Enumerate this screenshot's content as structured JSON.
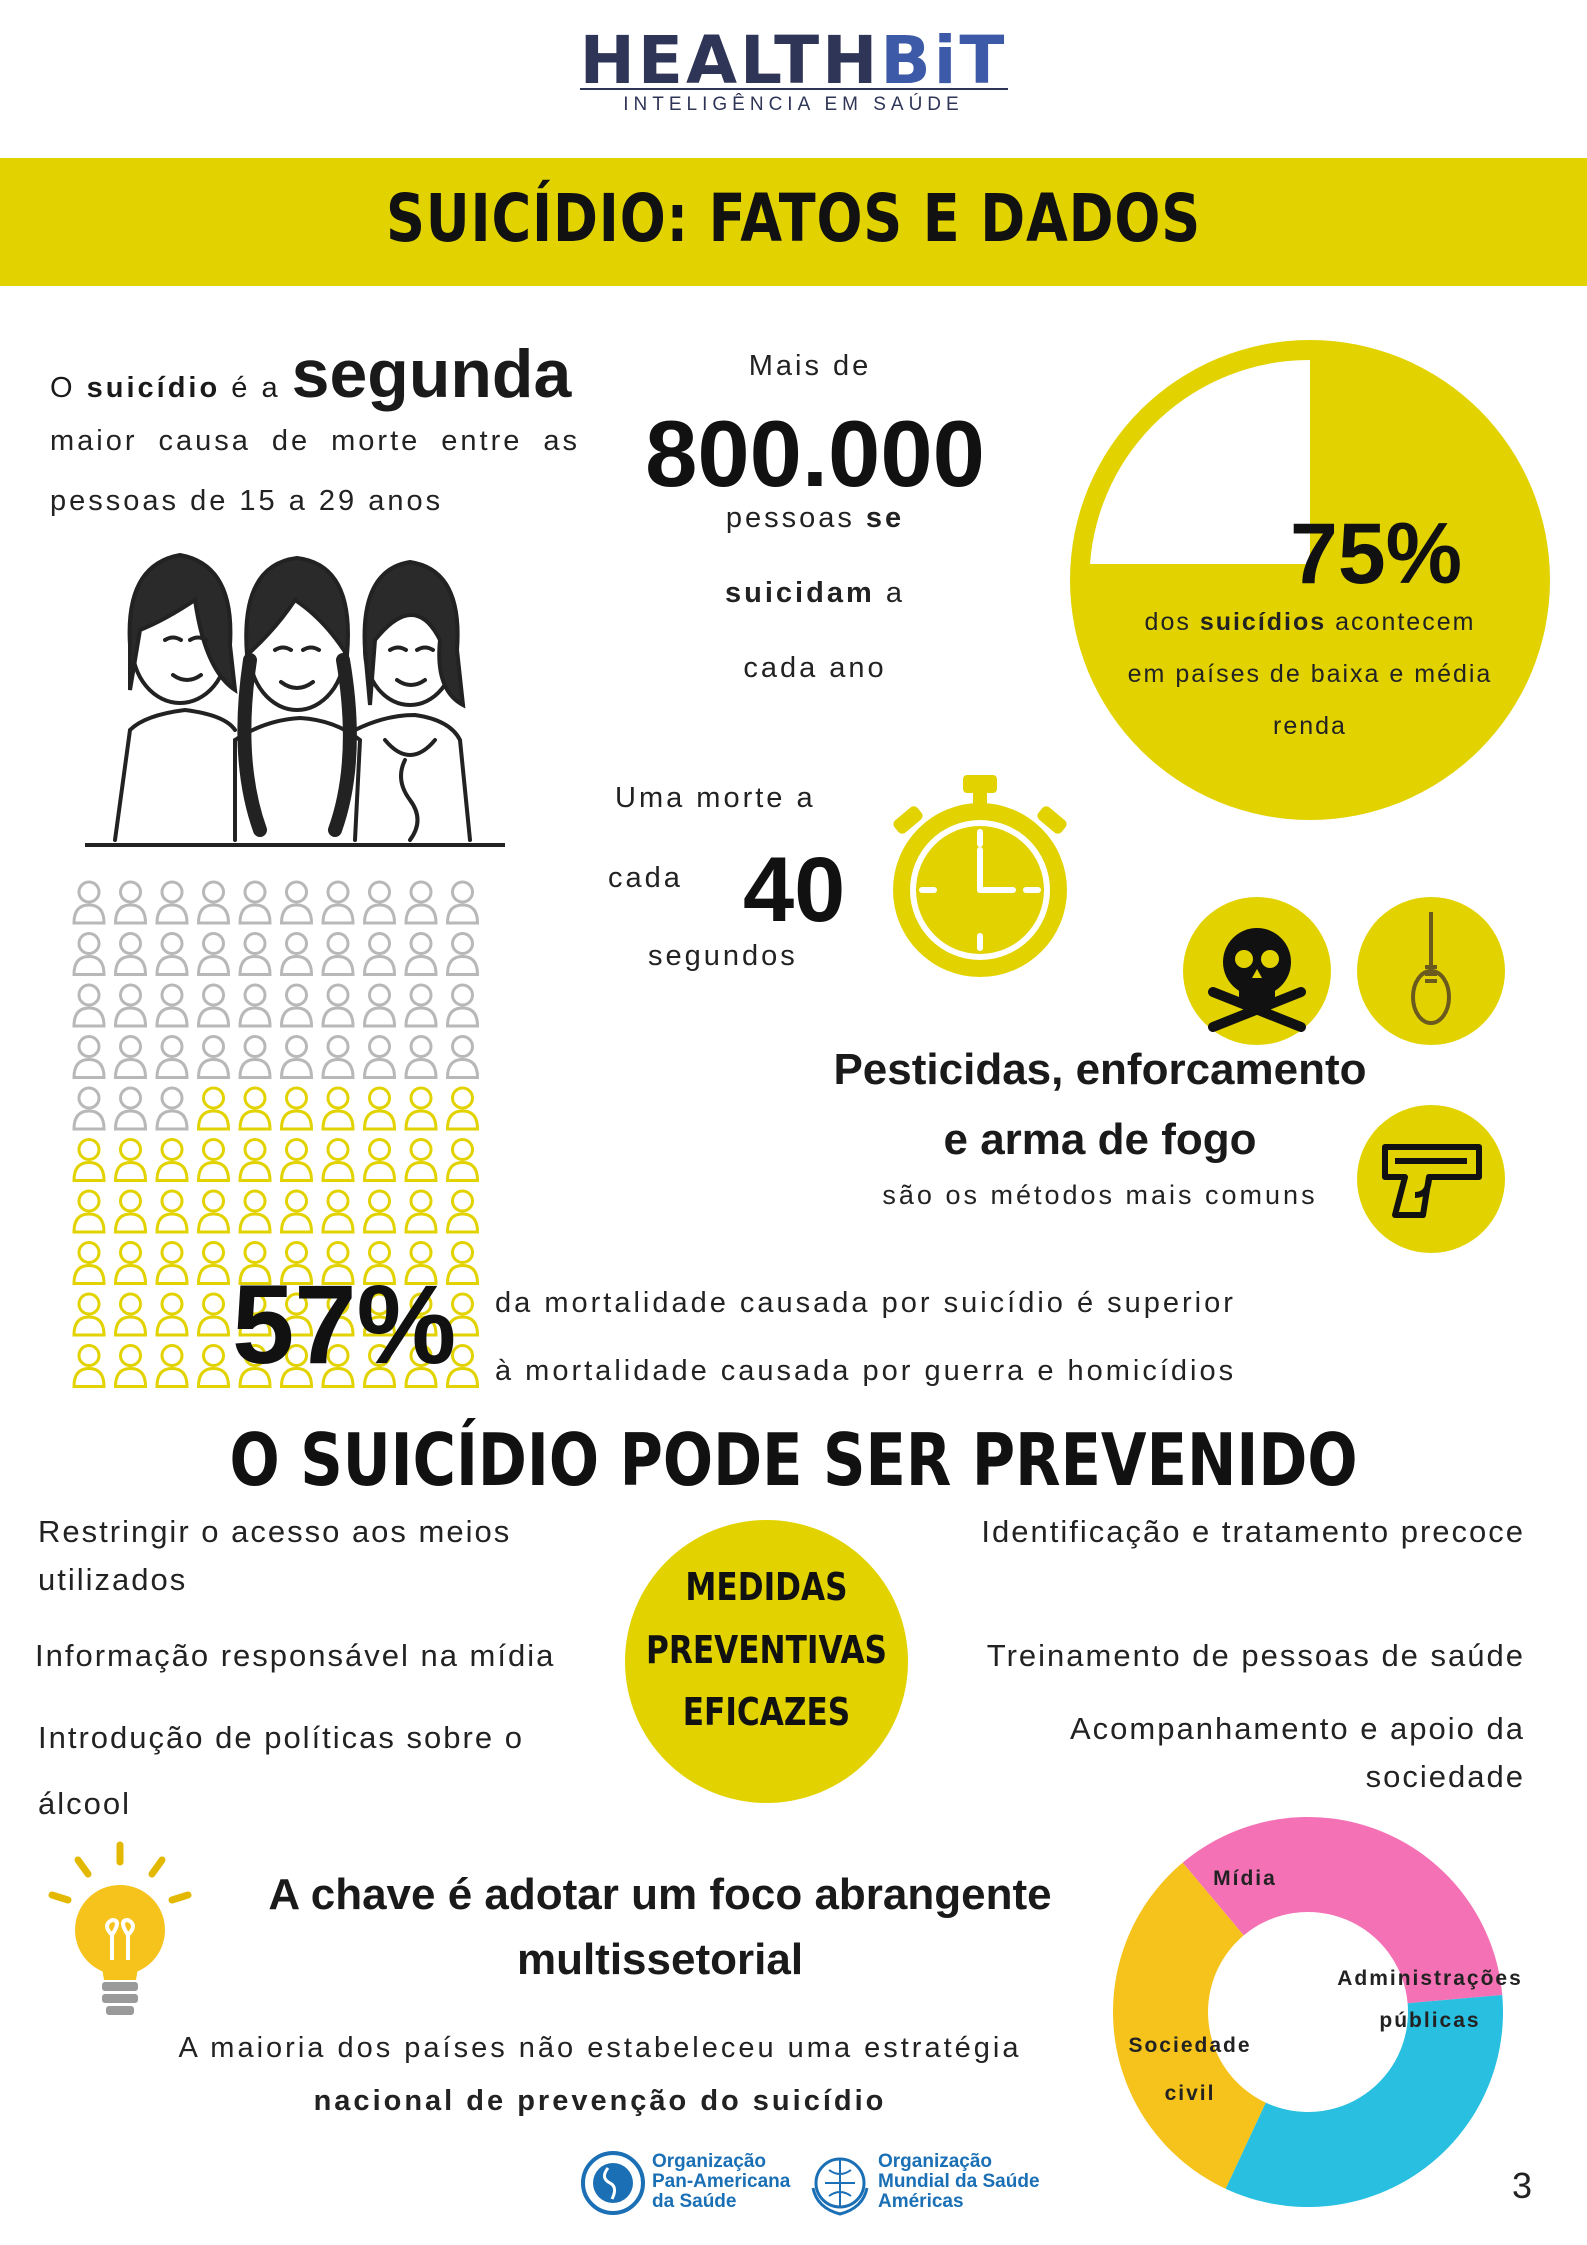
{
  "header": {
    "logo_part1": "HEALTH",
    "logo_part2": "BiT",
    "logo_tagline": "INTELIGÊNCIA EM SAÚDE"
  },
  "banner": {
    "title": "SUICÍDIO: FATOS E DADOS"
  },
  "fact_second_cause": {
    "prefix": "O",
    "bold": "suicídio",
    "mid": "é a",
    "highlight": "segunda",
    "line2": "maior causa de morte entre as",
    "line3": "pessoas de 15 a 29 anos"
  },
  "fact_800k": {
    "line1": "Mais de",
    "number": "800.000",
    "line2_a": "pessoas",
    "line2_b": "se",
    "line3_a": "suicidam",
    "line3_b": "a",
    "line4": "cada ano"
  },
  "fact_75": {
    "percent": "75%",
    "percent_value": 75,
    "line1_a": "dos",
    "line1_b": "suicídios",
    "line1_c": "acontecem",
    "line2": "em países de baixa e média",
    "line3": "renda"
  },
  "fact_40s": {
    "line1": "Uma morte a",
    "line2": "cada",
    "number": "40",
    "line3": "segundos"
  },
  "methods": {
    "title_line1": "Pesticidas, enforcamento",
    "title_line2": "e arma de fogo",
    "subtitle": "são os métodos mais comuns"
  },
  "fact_57": {
    "percent": "57%",
    "percent_value": 57,
    "line1": "da mortalidade causada por suicídio é superior",
    "line2": "à mortalidade causada por guerra e homicídios"
  },
  "prevention": {
    "title": "O SUICÍDIO PODE SER PREVENIDO",
    "center_line1": "MEDIDAS",
    "center_line2": "PREVENTIVAS",
    "center_line3": "EFICAZES",
    "left": [
      "Restringir o acesso aos meios utilizados",
      "Informação responsável na mídia",
      "Introdução de políticas sobre o álcool"
    ],
    "right": [
      "Identificação e tratamento precoce",
      "Treinamento de pessoas de saúde",
      "Acompanhamento e apoio da sociedade"
    ]
  },
  "key": {
    "title_line1": "A chave é adotar um foco abrangente",
    "title_line2": "multissetorial",
    "line1": "A maioria dos países não estabeleceu uma estratégia",
    "line2": "nacional de prevenção do suicídio"
  },
  "cycle": {
    "segments": [
      {
        "label": "Mídia",
        "color": "#f471b5"
      },
      {
        "label": "Administrações públicas",
        "color": "#28bfe0"
      },
      {
        "label": "Sociedade civil",
        "color": "#f6c31c"
      }
    ]
  },
  "footer": {
    "org1_line1": "Organização",
    "org1_line2": "Pan-Americana",
    "org1_line3": "da Saúde",
    "org2_line1": "Organização",
    "org2_line2": "Mundial da Saúde",
    "org2_line3": "Américas",
    "page_number": "3"
  },
  "colors": {
    "accent_yellow": "#e2d300",
    "dark_navy": "#2f3557",
    "org_blue": "#1a6fb5"
  },
  "icons": [
    "skull-crossbones-icon",
    "noose-icon",
    "gun-icon",
    "stopwatch-icon",
    "lightbulb-icon",
    "person-icon"
  ]
}
